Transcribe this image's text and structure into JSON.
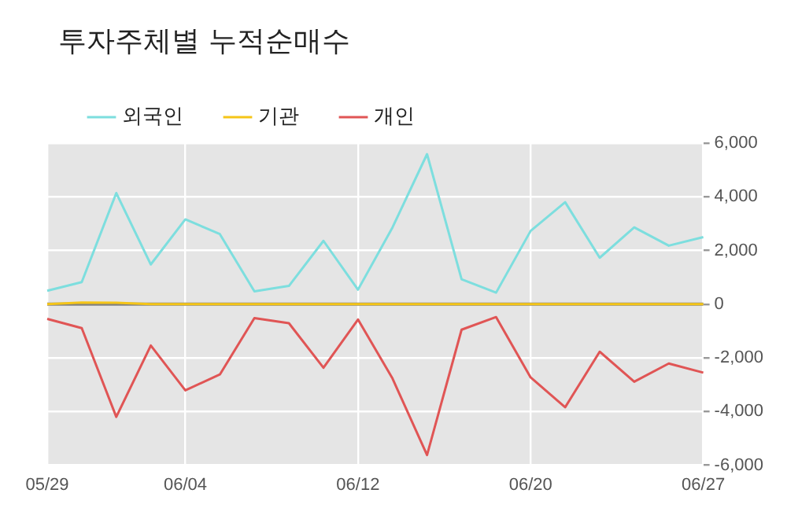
{
  "chart_data": {
    "type": "line",
    "title": "투자주체별 누적순매수",
    "categories": [
      "05/29",
      null,
      null,
      null,
      "06/04",
      null,
      null,
      null,
      null,
      "06/12",
      null,
      null,
      null,
      null,
      "06/20",
      null,
      null,
      null,
      null,
      "06/27"
    ],
    "series": [
      {
        "name": "외국인",
        "color": "#7ddede",
        "values": [
          500,
          820,
          4140,
          1480,
          3160,
          2610,
          480,
          680,
          2360,
          540,
          2860,
          5590,
          930,
          430,
          2730,
          3800,
          1730,
          2860,
          2180,
          2500
        ]
      },
      {
        "name": "기관",
        "color": "#f5c518",
        "values": [
          0,
          60,
          50,
          0,
          0,
          0,
          0,
          0,
          0,
          0,
          0,
          0,
          0,
          0,
          0,
          0,
          0,
          0,
          0,
          0
        ]
      },
      {
        "name": "개인",
        "color": "#e05555",
        "values": [
          -550,
          -890,
          -4200,
          -1540,
          -3210,
          -2620,
          -520,
          -710,
          -2370,
          -570,
          -2770,
          -5620,
          -950,
          -480,
          -2730,
          -3840,
          -1770,
          -2890,
          -2210,
          -2550
        ]
      }
    ],
    "ylim": [
      -6000,
      6000
    ],
    "yticks": [
      {
        "value": -6000,
        "label": "-6,000"
      },
      {
        "value": -4000,
        "label": "-4,000"
      },
      {
        "value": -2000,
        "label": "-2,000"
      },
      0,
      {
        "value": 2000,
        "label": "2,000"
      },
      {
        "value": 4000,
        "label": "4,000"
      },
      {
        "value": 6000,
        "label": "6,000"
      }
    ],
    "ref_lines": [
      {
        "axis": "y",
        "value": 0,
        "color": "#808080"
      }
    ],
    "grid": true,
    "legend": "top left",
    "marker": "none",
    "line_style": "solid"
  }
}
